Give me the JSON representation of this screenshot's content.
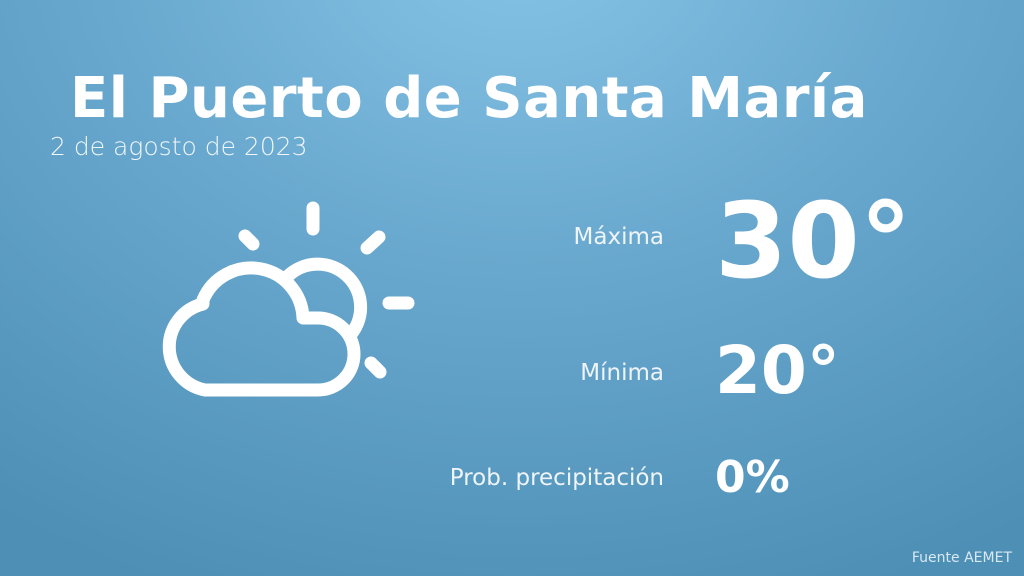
{
  "header": {
    "city": "El Puerto de Santa María",
    "date": "2 de agosto de 2023"
  },
  "weather": {
    "icon": "partly-cloudy-sun-icon",
    "max_label": "Máxima",
    "max_value": "30°",
    "min_label": "Mínima",
    "min_value": "20°",
    "prob_label": "Prob. precipitación",
    "prob_value": "0%"
  },
  "footer": {
    "source": "Fuente AEMET"
  },
  "colors": {
    "background_top": "#86c4e6",
    "background_bottom": "#4d8fb5",
    "text": "#ffffff"
  }
}
